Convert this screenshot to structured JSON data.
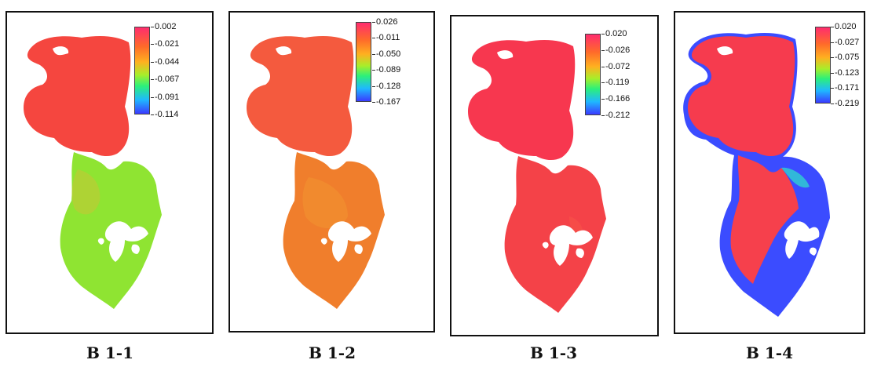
{
  "panels": [
    {
      "caption": "B 1-1",
      "colorbar": [
        "0.002",
        "-0.021",
        "-0.044",
        "-0.067",
        "-0.091",
        "-0.114"
      ],
      "colors": {
        "upper": "#f5463f",
        "lower": "#8fe432",
        "mix": "#c8c537",
        "holes": "#ffffff"
      }
    },
    {
      "caption": "B 1-2",
      "colorbar": [
        "0.026",
        "-0.011",
        "-0.050",
        "-0.089",
        "-0.128",
        "-0.167"
      ],
      "colors": {
        "upper": "#f45a3e",
        "lower": "#f07e2c",
        "mix": "#f29a30",
        "holes": "#ffffff"
      }
    },
    {
      "caption": "B 1-3",
      "colorbar": [
        "0.020",
        "-0.026",
        "-0.072",
        "-0.119",
        "-0.166",
        "-0.212"
      ],
      "colors": {
        "upper": "#f7374f",
        "lower": "#f44248",
        "mix": "#f7534a",
        "holes": "#ffffff"
      }
    },
    {
      "caption": "B 1-4",
      "colorbar": [
        "0.020",
        "-0.027",
        "-0.075",
        "-0.123",
        "-0.171",
        "-0.219"
      ],
      "colors": {
        "upper": "#f63b4e",
        "lower": "#f6404c",
        "edge": "#3b4cff",
        "mix": "#2fd2d0",
        "holes": "#ffffff"
      }
    }
  ]
}
